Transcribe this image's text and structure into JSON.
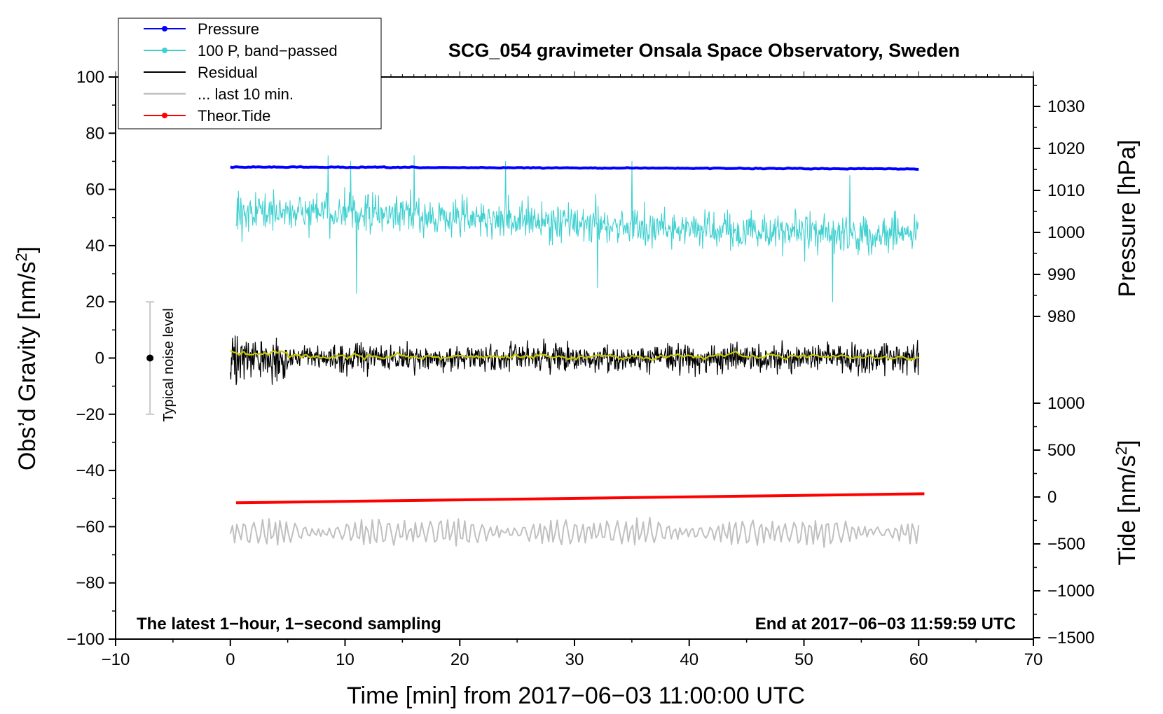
{
  "chart_data": {
    "type": "line",
    "title": "SCG_054 gravimeter Onsala Space Observatory, Sweden",
    "xlabel": "Time [min] from 2017−06−03 11:00:00 UTC",
    "ylabel_main": "Obs’d Gravity [nm/s",
    "ylabel_main_sup": "2",
    "ylabel_main_close": "]",
    "ylabel_pressure": "Pressure [hPa]",
    "ylabel_tide": "Tide [nm/s",
    "ylabel_tide_sup": "2",
    "ylabel_tide_close": "]",
    "xlim": [
      -10,
      70
    ],
    "ylim": [
      -100,
      100
    ],
    "x_ticks": [
      -10,
      0,
      10,
      20,
      30,
      40,
      50,
      60,
      70
    ],
    "x_tick_labels": [
      "−10",
      "0",
      "10",
      "20",
      "30",
      "40",
      "50",
      "60",
      "70"
    ],
    "y_ticks": [
      100,
      80,
      60,
      40,
      20,
      0,
      -20,
      -40,
      -60,
      -80,
      -100
    ],
    "y_tick_labels": [
      "100",
      "80",
      "60",
      "40",
      "20",
      "0",
      "−20",
      "−40",
      "−60",
      "−80",
      "−100"
    ],
    "pressure_axis": {
      "ticks": [
        1030,
        1020,
        1010,
        1000,
        990,
        980
      ],
      "tick_labels": [
        "1030",
        "1020",
        "1010",
        "1000",
        "990",
        "980"
      ],
      "range": [
        950,
        1036
      ]
    },
    "tide_axis": {
      "ticks": [
        1000,
        500,
        0,
        -500,
        -1000,
        -1500
      ],
      "tick_labels": [
        "1000",
        "500",
        "0",
        "−500",
        "−1000",
        "−1500"
      ],
      "range": [
        -1500,
        1500
      ]
    },
    "legend": [
      {
        "label": "Pressure",
        "color": "#0000ff",
        "marker": true
      },
      {
        "label": "100 P, band−passed",
        "color": "#40d0d0",
        "marker": true
      },
      {
        "label": "Residual",
        "color": "#000000",
        "marker": false
      },
      {
        "label": "... last 10 min.",
        "color": "#c0c0c0",
        "marker": false
      },
      {
        "label": "Theor.Tide",
        "color": "#ff0000",
        "marker": true
      }
    ],
    "legend_position": "top-left",
    "series": [
      {
        "name": "Pressure",
        "color": "#0000ff",
        "axis": "gravity",
        "x_range": [
          0,
          60
        ],
        "start": 68.0,
        "end": 67.3,
        "noise_amp": 0.4,
        "style": "thick"
      },
      {
        "name": "100 P, band−passed",
        "color": "#40d0d0",
        "axis": "gravity",
        "x_range": [
          0.5,
          60
        ],
        "center": 48,
        "noise_amp": 7,
        "spikes": [
          [
            8.5,
            72
          ],
          [
            10.5,
            70
          ],
          [
            11,
            23
          ],
          [
            16,
            72
          ],
          [
            24,
            70
          ],
          [
            32,
            25
          ],
          [
            35,
            70
          ],
          [
            52.5,
            20
          ],
          [
            54,
            65
          ]
        ],
        "style": "thin"
      },
      {
        "name": "Residual",
        "color": "#000000",
        "axis": "gravity",
        "x_range": [
          0,
          60
        ],
        "center": 0,
        "noise_amp": 5,
        "style": "thin"
      },
      {
        "name": "Residual smoothed",
        "color": "#c8c800",
        "axis": "gravity",
        "x_range": [
          0,
          60
        ],
        "center": 0.5,
        "noise_amp": 1.2,
        "style": "medium"
      },
      {
        "name": "Theor.Tide",
        "color": "#ff0000",
        "axis": "gravity",
        "x_range": [
          0.5,
          60.5
        ],
        "start": -51.5,
        "end": -48.3,
        "style": "thick"
      },
      {
        "name": "... last 10 min.",
        "color": "#c0c0c0",
        "axis": "gravity",
        "x_range": [
          0,
          60
        ],
        "center": -62,
        "noise_amp": 3.5,
        "style": "thin"
      }
    ],
    "noise_indicator": {
      "label": "Typical noise level",
      "x": -7,
      "y": 0,
      "low": -20,
      "high": 20
    },
    "annotation_left": "The latest 1−hour, 1−second sampling",
    "annotation_right": "End at 2017−06−03 11:59:59 UTC"
  }
}
